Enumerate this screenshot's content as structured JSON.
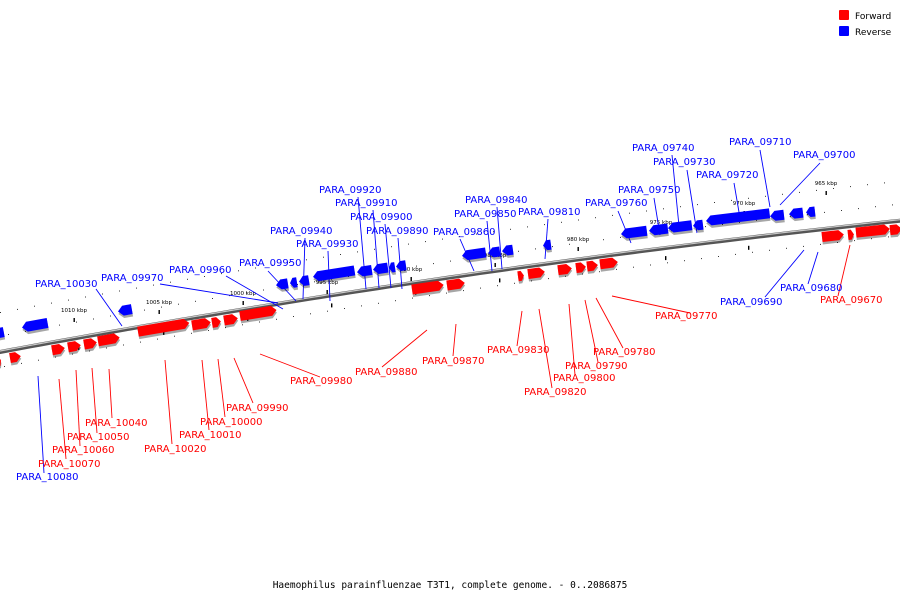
{
  "legend": [
    {
      "label": "Forward",
      "color": "#ff0000"
    },
    {
      "label": "Reverse",
      "color": "#0000ff"
    }
  ],
  "colors": {
    "forward": "#ff0000",
    "reverse": "#0000ff",
    "backbone": "#808080"
  },
  "footer": "Haemophilus parainfluenzae T3T1, complete genome. - 0..2086875",
  "scale_labels": [
    "965 kbp",
    "970 kbp",
    "975 kbp",
    "980 kbp",
    "985 kbp",
    "990 kbp",
    "995 kbp",
    "1000 kbp",
    "1005 kbp",
    "1010 kbp"
  ],
  "genes_forward": [
    "PARA_09670",
    "PARA_09770",
    "PARA_09780",
    "PARA_09790",
    "PARA_09800",
    "PARA_09820",
    "PARA_09830",
    "PARA_09870",
    "PARA_09880",
    "PARA_09980",
    "PARA_09990",
    "PARA_10000",
    "PARA_10010",
    "PARA_10020",
    "PARA_10040",
    "PARA_10050",
    "PARA_10060",
    "PARA_10070"
  ],
  "genes_reverse": [
    "PARA_09680",
    "PARA_09690",
    "PARA_09700",
    "PARA_09710",
    "PARA_09720",
    "PARA_09730",
    "PARA_09740",
    "PARA_09750",
    "PARA_09760",
    "PARA_09810",
    "PARA_09840",
    "PARA_09850",
    "PARA_09860",
    "PARA_09890",
    "PARA_09900",
    "PARA_09910",
    "PARA_09920",
    "PARA_09930",
    "PARA_09940",
    "PARA_09950",
    "PARA_09960",
    "PARA_09970",
    "PARA_10030",
    "PARA_10080"
  ]
}
